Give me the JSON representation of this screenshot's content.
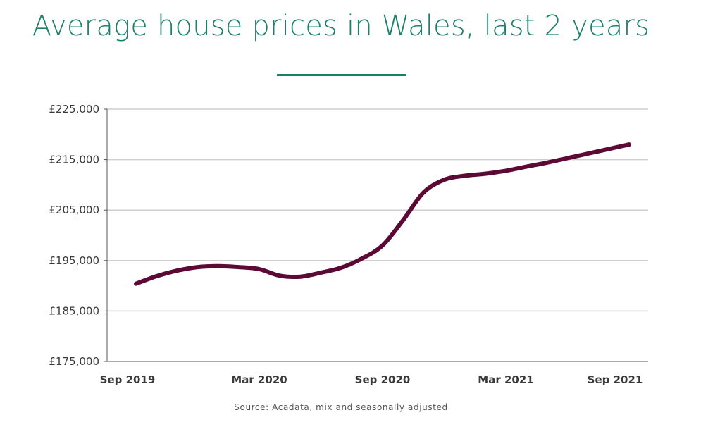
{
  "title": "Average house prices in Wales, last 2 years",
  "source": "Source: Acadata, mix and seasonally adjusted",
  "colors": {
    "title": "#1f7f6d",
    "line": "#5c0a35",
    "grid": "#cfcfcf",
    "axis": "#555555"
  },
  "chart_data": {
    "type": "line",
    "title": "Average house prices in Wales, last 2 years",
    "xlabel": "",
    "ylabel": "",
    "x_tick_labels": [
      "Sep 2019",
      "Mar 2020",
      "Sep 2020",
      "Mar 2021",
      "Sep 2021"
    ],
    "y_tick_labels": [
      "£175,000",
      "£185,000",
      "£195,000",
      "£205,000",
      "£215,000",
      "£225,000"
    ],
    "ylim": [
      175000,
      225000
    ],
    "y_ticks": [
      175000,
      185000,
      195000,
      205000,
      215000,
      225000
    ],
    "grid": true,
    "series": [
      {
        "x": [
          "2019-09",
          "2019-10",
          "2019-11",
          "2019-12",
          "2020-01",
          "2020-02",
          "2020-03",
          "2020-04",
          "2020-05",
          "2020-06",
          "2020-07",
          "2020-08",
          "2020-09",
          "2020-10",
          "2020-11",
          "2020-12",
          "2021-01",
          "2021-02",
          "2021-03",
          "2021-04",
          "2021-05",
          "2021-06",
          "2021-07",
          "2021-08",
          "2021-09"
        ],
        "values": [
          190400,
          191900,
          193000,
          193700,
          193900,
          193700,
          193300,
          192000,
          191800,
          192600,
          193600,
          195400,
          198000,
          203000,
          208500,
          211000,
          211800,
          212200,
          212800,
          213600,
          214400,
          215300,
          216200,
          217100,
          218000
        ]
      }
    ]
  }
}
